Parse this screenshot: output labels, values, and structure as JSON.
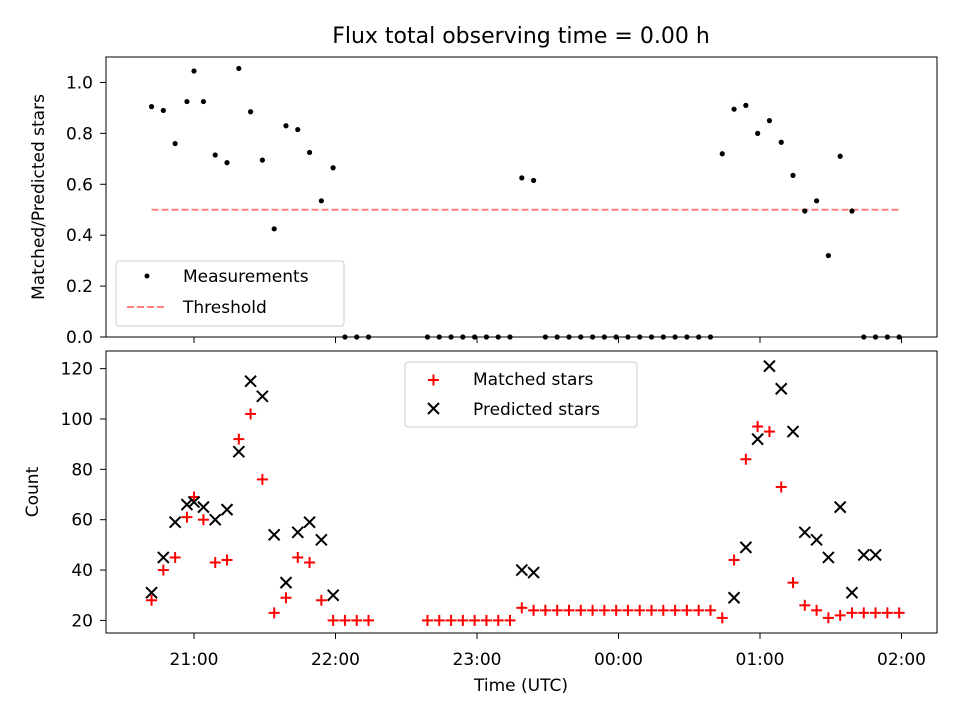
{
  "chart_data": [
    {
      "type": "scatter",
      "title": "Flux total observing time = 0.00 h",
      "ylabel": "Matched/Predicted stars",
      "ylim": [
        0,
        1.1
      ],
      "yticks": [
        "0.0",
        "0.2",
        "0.4",
        "0.6",
        "0.8",
        "1.0"
      ],
      "legend_position": "lower-left",
      "series": [
        {
          "name": "Measurements",
          "marker": "dot",
          "color": "#000000",
          "x": [
            "20:42",
            "20:47",
            "20:52",
            "20:57",
            "21:00",
            "21:04",
            "21:09",
            "21:14",
            "21:19",
            "21:24",
            "21:29",
            "21:34",
            "21:39",
            "21:44",
            "21:49",
            "21:54",
            "21:59",
            "22:04",
            "22:09",
            "22:14",
            "22:39",
            "22:44",
            "22:49",
            "22:54",
            "22:59",
            "23:04",
            "23:09",
            "23:14",
            "23:19",
            "23:24",
            "23:29",
            "23:34",
            "23:39",
            "23:44",
            "23:49",
            "23:54",
            "23:59",
            "00:04",
            "00:09",
            "00:14",
            "00:19",
            "00:24",
            "00:29",
            "00:34",
            "00:39",
            "00:44",
            "00:49",
            "00:54",
            "00:59",
            "01:04",
            "01:09",
            "01:14",
            "01:19",
            "01:24",
            "01:29",
            "01:34",
            "01:39",
            "01:44",
            "01:49",
            "01:54",
            "01:59"
          ],
          "y": [
            0.905,
            0.89,
            0.76,
            0.925,
            1.045,
            0.925,
            0.715,
            0.685,
            1.055,
            0.885,
            0.695,
            0.425,
            0.83,
            0.815,
            0.725,
            0.535,
            0.665,
            0.0,
            0.0,
            0.0,
            0.0,
            0.0,
            0.0,
            0.0,
            0.0,
            0.0,
            0.0,
            0.0,
            0.625,
            0.615,
            0.0,
            0.0,
            0.0,
            0.0,
            0.0,
            0.0,
            0.0,
            0.0,
            0.0,
            0.0,
            0.0,
            0.0,
            0.0,
            0.0,
            0.0,
            0.72,
            0.895,
            0.91,
            0.8,
            0.85,
            0.765,
            0.635,
            0.495,
            0.535,
            0.32,
            0.71,
            0.495,
            0.0,
            0.0,
            0.0,
            0.0
          ]
        },
        {
          "name": "Threshold",
          "style": "dashed-line",
          "color": "#ff7f7f",
          "x": [
            "20:42",
            "01:59"
          ],
          "y": [
            0.5,
            0.5
          ]
        }
      ]
    },
    {
      "type": "scatter",
      "ylabel": "Count",
      "xlabel": "Time (UTC)",
      "ylim": [
        15,
        127
      ],
      "yticks": [
        "20",
        "40",
        "60",
        "80",
        "100",
        "120"
      ],
      "xticks": [
        "21:00",
        "22:00",
        "23:00",
        "00:00",
        "01:00",
        "02:00"
      ],
      "legend_position": "top-center",
      "series": [
        {
          "name": "Matched stars",
          "marker": "plus",
          "color": "#ff0000",
          "x": [
            "20:42",
            "20:47",
            "20:52",
            "20:57",
            "21:00",
            "21:04",
            "21:09",
            "21:14",
            "21:19",
            "21:24",
            "21:29",
            "21:34",
            "21:39",
            "21:44",
            "21:49",
            "21:54",
            "21:59",
            "22:04",
            "22:09",
            "22:14",
            "22:39",
            "22:44",
            "22:49",
            "22:54",
            "22:59",
            "23:04",
            "23:09",
            "23:14",
            "23:19",
            "23:24",
            "23:29",
            "23:34",
            "23:39",
            "23:44",
            "23:49",
            "23:54",
            "23:59",
            "00:04",
            "00:09",
            "00:14",
            "00:19",
            "00:24",
            "00:29",
            "00:34",
            "00:39",
            "00:44",
            "00:49",
            "00:54",
            "00:59",
            "01:04",
            "01:09",
            "01:14",
            "01:19",
            "01:24",
            "01:29",
            "01:34",
            "01:39",
            "01:44",
            "01:49",
            "01:54",
            "01:59"
          ],
          "y": [
            28,
            40,
            45,
            61,
            69,
            60,
            43,
            44,
            92,
            102,
            76,
            23,
            29,
            45,
            43,
            28,
            20,
            20,
            20,
            20,
            20,
            20,
            20,
            20,
            20,
            20,
            20,
            20,
            25,
            24,
            24,
            24,
            24,
            24,
            24,
            24,
            24,
            24,
            24,
            24,
            24,
            24,
            24,
            24,
            24,
            21,
            44,
            84,
            97,
            95,
            73,
            35,
            26,
            24,
            21,
            22,
            23,
            23,
            23,
            23,
            23
          ]
        },
        {
          "name": "Predicted stars",
          "marker": "x",
          "color": "#000000",
          "x": [
            "20:42",
            "20:47",
            "20:52",
            "20:57",
            "21:00",
            "21:04",
            "21:09",
            "21:14",
            "21:19",
            "21:24",
            "21:29",
            "21:34",
            "21:39",
            "21:44",
            "21:49",
            "21:54",
            "21:59",
            "23:19",
            "23:24",
            "00:49",
            "00:54",
            "00:59",
            "01:04",
            "01:09",
            "01:14",
            "01:19",
            "01:24",
            "01:29",
            "01:34",
            "01:39",
            "01:44",
            "01:49"
          ],
          "y": [
            31,
            45,
            59,
            66,
            67,
            65,
            60,
            64,
            87,
            115,
            109,
            54,
            35,
            55,
            59,
            52,
            30,
            40,
            39,
            29,
            49,
            92,
            121,
            112,
            95,
            55,
            52,
            45,
            65,
            31,
            46,
            46
          ]
        }
      ]
    }
  ]
}
